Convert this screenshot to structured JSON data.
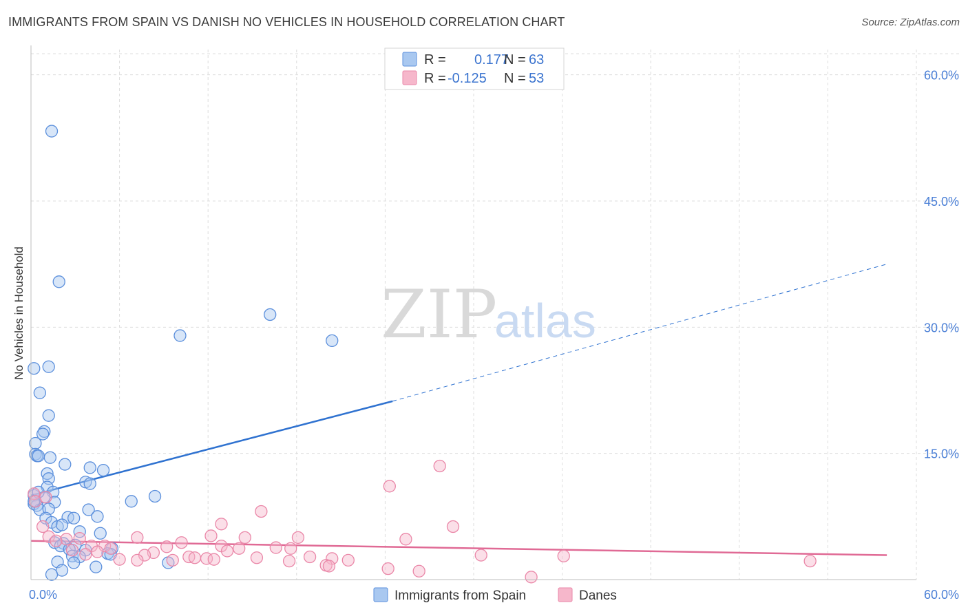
{
  "title": "IMMIGRANTS FROM SPAIN VS DANISH NO VEHICLES IN HOUSEHOLD CORRELATION CHART",
  "source": "Source: ZipAtlas.com",
  "watermark": {
    "zip": "ZIP",
    "atlas": "atlas"
  },
  "legend": {
    "r_label": "R =",
    "n_label": "N =",
    "series": [
      {
        "name": "Immigrants from Spain",
        "r": "0.177",
        "n": "63"
      },
      {
        "name": "Danes",
        "r": "-0.125",
        "n": "53"
      }
    ]
  },
  "colors": {
    "blue_fill": "#a9c8f0",
    "blue_stroke": "#5b8fdc",
    "blue_line": "#2f72d0",
    "pink_fill": "#f6b7cb",
    "pink_stroke": "#ea87a8",
    "pink_line": "#e06a95",
    "grid": "#dcdcdc",
    "tick_text": "#4a7fd6"
  },
  "chart_data": {
    "type": "scatter",
    "title": "IMMIGRANTS FROM SPAIN VS DANISH NO VEHICLES IN HOUSEHOLD CORRELATION CHART",
    "xlabel": "",
    "ylabel": "No Vehicles in Household",
    "xlim": [
      0,
      60
    ],
    "ylim": [
      0,
      63
    ],
    "x_tick_labels": [
      "0.0%",
      "60.0%"
    ],
    "y_ticks": [
      15,
      30,
      45,
      60
    ],
    "y_tick_labels": [
      "15.0%",
      "30.0%",
      "45.0%",
      "60.0%"
    ],
    "legend_position": "top-center",
    "series": [
      {
        "name": "Immigrants from Spain",
        "r": 0.177,
        "n": 63,
        "trend": {
          "x0": 0,
          "y0": 10.0,
          "x1_solid": 24.5,
          "y1_solid": 21.2,
          "x1": 58,
          "y1": 37.5
        },
        "points": [
          [
            1.4,
            53.3
          ],
          [
            1.9,
            35.4
          ],
          [
            16.2,
            31.5
          ],
          [
            10.1,
            29.0
          ],
          [
            20.4,
            28.4
          ],
          [
            1.2,
            25.3
          ],
          [
            0.2,
            25.1
          ],
          [
            0.6,
            22.2
          ],
          [
            1.2,
            19.5
          ],
          [
            0.9,
            17.6
          ],
          [
            0.8,
            17.3
          ],
          [
            0.3,
            16.2
          ],
          [
            0.3,
            14.9
          ],
          [
            0.4,
            14.7
          ],
          [
            0.5,
            14.7
          ],
          [
            1.3,
            14.5
          ],
          [
            2.3,
            13.7
          ],
          [
            4.0,
            13.3
          ],
          [
            4.9,
            13.0
          ],
          [
            1.1,
            12.6
          ],
          [
            1.2,
            12.0
          ],
          [
            3.7,
            11.6
          ],
          [
            4.0,
            11.4
          ],
          [
            1.1,
            11.0
          ],
          [
            1.5,
            10.4
          ],
          [
            0.2,
            10.0
          ],
          [
            0.9,
            9.8
          ],
          [
            8.4,
            9.9
          ],
          [
            6.8,
            9.3
          ],
          [
            1.6,
            9.2
          ],
          [
            0.2,
            9.0
          ],
          [
            0.4,
            8.8
          ],
          [
            0.6,
            8.3
          ],
          [
            1.2,
            8.4
          ],
          [
            3.9,
            8.3
          ],
          [
            1.0,
            7.3
          ],
          [
            2.5,
            7.4
          ],
          [
            2.9,
            7.3
          ],
          [
            4.5,
            7.5
          ],
          [
            1.4,
            6.8
          ],
          [
            1.8,
            6.3
          ],
          [
            2.1,
            6.5
          ],
          [
            3.3,
            5.7
          ],
          [
            4.7,
            5.5
          ],
          [
            1.6,
            4.4
          ],
          [
            2.2,
            4.3
          ],
          [
            3.0,
            4.1
          ],
          [
            2.0,
            4.0
          ],
          [
            2.6,
            3.6
          ],
          [
            3.7,
            3.5
          ],
          [
            5.5,
            3.7
          ],
          [
            5.2,
            3.1
          ],
          [
            5.4,
            3.0
          ],
          [
            2.8,
            2.8
          ],
          [
            3.3,
            2.7
          ],
          [
            1.8,
            2.1
          ],
          [
            2.9,
            2.0
          ],
          [
            9.3,
            2.0
          ],
          [
            4.4,
            1.5
          ],
          [
            2.1,
            1.1
          ],
          [
            1.4,
            0.6
          ],
          [
            0.2,
            9.3
          ],
          [
            0.5,
            10.4
          ]
        ]
      },
      {
        "name": "Danes",
        "r": -0.125,
        "n": 53,
        "trend": {
          "x0": 0,
          "y0": 4.6,
          "x1": 58,
          "y1": 2.9
        },
        "points": [
          [
            27.7,
            13.5
          ],
          [
            24.3,
            11.1
          ],
          [
            0.2,
            10.2
          ],
          [
            1.0,
            9.8
          ],
          [
            0.3,
            9.3
          ],
          [
            15.6,
            8.1
          ],
          [
            12.9,
            6.6
          ],
          [
            0.8,
            6.3
          ],
          [
            28.6,
            6.3
          ],
          [
            1.2,
            5.1
          ],
          [
            12.2,
            5.2
          ],
          [
            14.5,
            5.0
          ],
          [
            18.1,
            5.0
          ],
          [
            2.4,
            4.8
          ],
          [
            25.4,
            4.8
          ],
          [
            1.7,
            4.6
          ],
          [
            10.2,
            4.4
          ],
          [
            7.2,
            5.0
          ],
          [
            3.3,
            4.9
          ],
          [
            4.1,
            4.0
          ],
          [
            5.0,
            4.0
          ],
          [
            5.4,
            3.7
          ],
          [
            9.2,
            3.9
          ],
          [
            12.9,
            4.0
          ],
          [
            14.1,
            3.7
          ],
          [
            16.6,
            3.8
          ],
          [
            17.6,
            3.7
          ],
          [
            2.8,
            3.5
          ],
          [
            13.3,
            3.4
          ],
          [
            4.5,
            3.3
          ],
          [
            8.3,
            3.2
          ],
          [
            3.7,
            3.0
          ],
          [
            7.7,
            2.9
          ],
          [
            10.7,
            2.7
          ],
          [
            11.1,
            2.6
          ],
          [
            11.9,
            2.5
          ],
          [
            15.3,
            2.6
          ],
          [
            18.9,
            2.7
          ],
          [
            20.4,
            2.5
          ],
          [
            30.5,
            2.9
          ],
          [
            36.1,
            2.8
          ],
          [
            6.0,
            2.4
          ],
          [
            9.6,
            2.3
          ],
          [
            12.4,
            2.4
          ],
          [
            7.2,
            2.3
          ],
          [
            21.5,
            2.3
          ],
          [
            17.5,
            2.2
          ],
          [
            20.0,
            1.7
          ],
          [
            20.2,
            1.6
          ],
          [
            24.2,
            1.3
          ],
          [
            26.3,
            1.0
          ],
          [
            33.9,
            0.3
          ],
          [
            52.8,
            2.2
          ]
        ]
      }
    ]
  }
}
